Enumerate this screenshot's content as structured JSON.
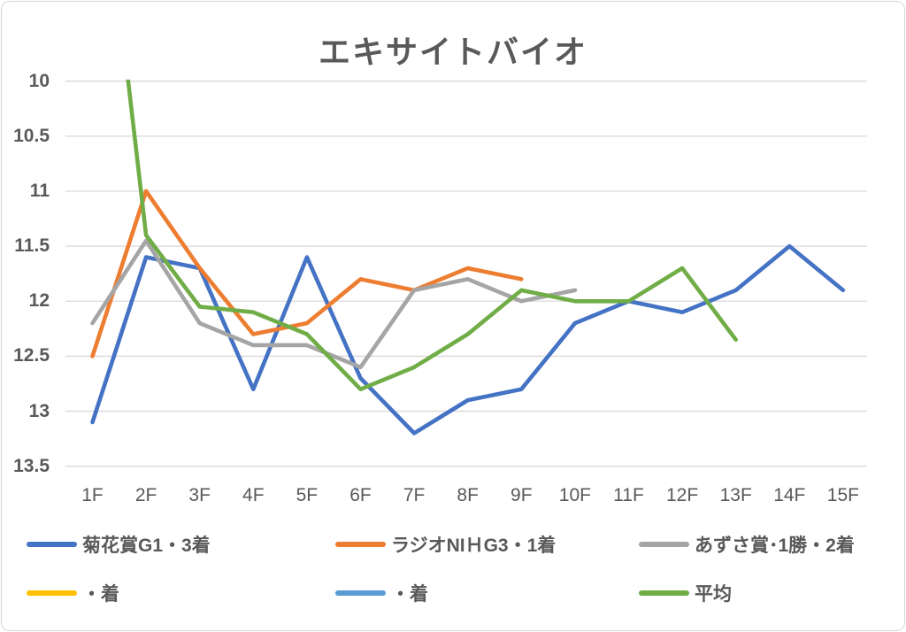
{
  "colors": {
    "text": "#595959",
    "gridline": "#d9d9d9",
    "frame_border": "#d6d6d6"
  },
  "chart_data": {
    "type": "line",
    "title": "エキサイトバイオ",
    "x_categories": [
      "1F",
      "2F",
      "3F",
      "4F",
      "5F",
      "6F",
      "7F",
      "8F",
      "9F",
      "10F",
      "11F",
      "12F",
      "13F",
      "14F",
      "15F"
    ],
    "y_ticks": [
      "10",
      "10.5",
      "11",
      "11.5",
      "12",
      "12.5",
      "13",
      "13.5"
    ],
    "y_tick_values": [
      10,
      10.5,
      11,
      11.5,
      12,
      12.5,
      13,
      13.5
    ],
    "ylim": [
      10,
      13.5
    ],
    "y_axis_reversed": true,
    "grid": "horizontal",
    "legend_position": "bottom",
    "series": [
      {
        "name": "菊花賞G1・3着",
        "color": "#4472C4",
        "values": [
          13.1,
          11.6,
          11.7,
          12.8,
          11.6,
          12.7,
          13.2,
          12.9,
          12.8,
          12.2,
          12.0,
          12.1,
          11.9,
          11.5,
          11.9
        ]
      },
      {
        "name": "ラジオNIＨG3・1着",
        "color": "#ED7D31",
        "values": [
          12.5,
          11.0,
          11.7,
          12.3,
          12.2,
          11.8,
          11.9,
          11.7,
          11.8
        ]
      },
      {
        "name": "あずさ賞･1勝・2着",
        "color": "#A5A5A5",
        "values": [
          12.2,
          11.45,
          12.2,
          12.4,
          12.4,
          12.6,
          11.9,
          11.8,
          12.0,
          11.9
        ]
      },
      {
        "name": "・着",
        "color": "#FFC000",
        "values": []
      },
      {
        "name": "・着",
        "color": "#5B9BD5",
        "values": []
      },
      {
        "name": "平均",
        "color": "#70AD47",
        "values": [
          7.2,
          11.4,
          12.05,
          12.1,
          12.3,
          12.8,
          12.6,
          12.3,
          11.9,
          12.0,
          12.0,
          11.7,
          12.35
        ]
      }
    ]
  }
}
